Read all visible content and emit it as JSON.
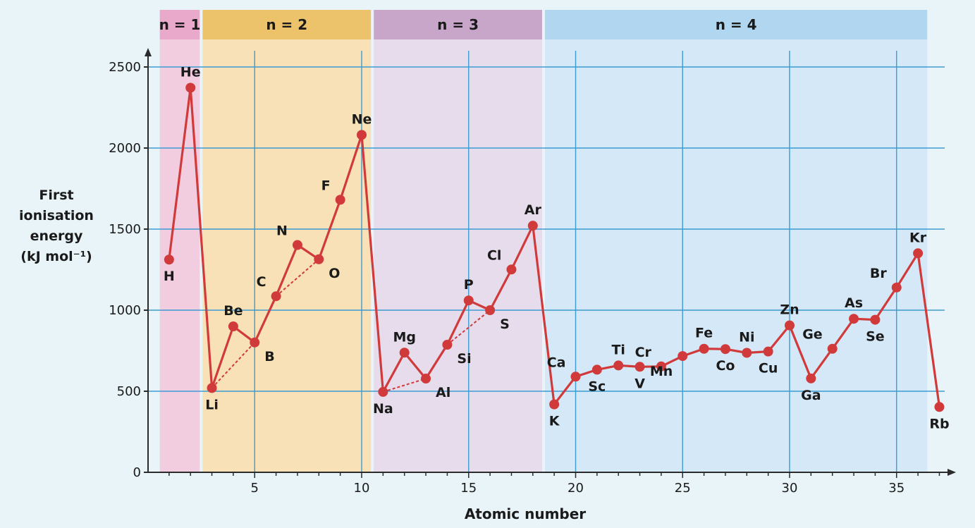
{
  "chart_data": {
    "type": "line",
    "ylabel_lines": [
      "First",
      "ionisation",
      "energy",
      "(kJ mol⁻¹)"
    ],
    "xlabel": "Atomic number",
    "xlim": [
      0,
      38
    ],
    "ylim": [
      0,
      2500
    ],
    "x_ticks": [
      5,
      10,
      15,
      20,
      25,
      30,
      35
    ],
    "y_ticks": [
      0,
      500,
      1000,
      1500,
      2000,
      2500
    ],
    "grid": true,
    "shells": [
      {
        "label": "n = 1",
        "from": 0.5,
        "to": 2.5,
        "band_color": "#f2cde0",
        "header_color": "#e9a9cb"
      },
      {
        "label": "n = 2",
        "from": 2.5,
        "to": 10.5,
        "band_color": "#f8e1b7",
        "header_color": "#ecc36b"
      },
      {
        "label": "n = 3",
        "from": 10.5,
        "to": 18.5,
        "band_color": "#e6dcec",
        "header_color": "#c7a6ca"
      },
      {
        "label": "n = 4",
        "from": 18.5,
        "to": 36.5,
        "band_color": "#d5e8f7",
        "header_color": "#b0d7ef"
      }
    ],
    "series": [
      {
        "color": "#d13a3a",
        "points": [
          {
            "x": 1,
            "y": 1312,
            "label": "H",
            "pos": "below"
          },
          {
            "x": 2,
            "y": 2372,
            "label": "He",
            "pos": "above"
          },
          {
            "x": 3,
            "y": 520,
            "label": "Li",
            "pos": "below"
          },
          {
            "x": 4,
            "y": 900,
            "label": "Be",
            "pos": "above"
          },
          {
            "x": 5,
            "y": 801,
            "label": "B",
            "pos": "below-right"
          },
          {
            "x": 6,
            "y": 1086,
            "label": "C",
            "pos": "above-left"
          },
          {
            "x": 7,
            "y": 1402,
            "label": "N",
            "pos": "above-left"
          },
          {
            "x": 8,
            "y": 1314,
            "label": "O",
            "pos": "below-right"
          },
          {
            "x": 9,
            "y": 1681,
            "label": "F",
            "pos": "above-left"
          },
          {
            "x": 10,
            "y": 2081,
            "label": "Ne",
            "pos": "above"
          },
          {
            "x": 11,
            "y": 496,
            "label": "Na",
            "pos": "below"
          },
          {
            "x": 12,
            "y": 738,
            "label": "Mg",
            "pos": "above"
          },
          {
            "x": 13,
            "y": 578,
            "label": "Al",
            "pos": "below-right"
          },
          {
            "x": 14,
            "y": 787,
            "label": "Si",
            "pos": "below-right"
          },
          {
            "x": 15,
            "y": 1060,
            "label": "P",
            "pos": "above"
          },
          {
            "x": 16,
            "y": 1000,
            "label": "S",
            "pos": "below-right"
          },
          {
            "x": 17,
            "y": 1251,
            "label": "Cl",
            "pos": "above-left"
          },
          {
            "x": 18,
            "y": 1521,
            "label": "Ar",
            "pos": "above"
          },
          {
            "x": 19,
            "y": 419,
            "label": "K",
            "pos": "below"
          },
          {
            "x": 20,
            "y": 590,
            "label": "Ca",
            "pos": "above-left"
          },
          {
            "x": 21,
            "y": 633,
            "label": "Sc",
            "pos": "below"
          },
          {
            "x": 22,
            "y": 659,
            "label": "Ti",
            "pos": "above"
          },
          {
            "x": 23,
            "y": 651,
            "label": "V",
            "pos": "below"
          },
          {
            "x": 24,
            "y": 653,
            "label": "Cr",
            "pos": "above-left"
          },
          {
            "x": 25,
            "y": 717,
            "label": "Mn",
            "pos": "below-left"
          },
          {
            "x": 26,
            "y": 762,
            "label": "Fe",
            "pos": "above"
          },
          {
            "x": 27,
            "y": 760,
            "label": "Co",
            "pos": "below"
          },
          {
            "x": 28,
            "y": 737,
            "label": "Ni",
            "pos": "above"
          },
          {
            "x": 29,
            "y": 745,
            "label": "Cu",
            "pos": "below"
          },
          {
            "x": 30,
            "y": 906,
            "label": "Zn",
            "pos": "above"
          },
          {
            "x": 31,
            "y": 579,
            "label": "Ga",
            "pos": "below"
          },
          {
            "x": 32,
            "y": 762,
            "label": "Ge",
            "pos": "above-left"
          },
          {
            "x": 33,
            "y": 947,
            "label": "As",
            "pos": "above"
          },
          {
            "x": 34,
            "y": 941,
            "label": "Se",
            "pos": "below"
          },
          {
            "x": 35,
            "y": 1140,
            "label": "Br",
            "pos": "above-left"
          },
          {
            "x": 36,
            "y": 1351,
            "label": "Kr",
            "pos": "above"
          },
          {
            "x": 37,
            "y": 403,
            "label": "Rb",
            "pos": "below"
          }
        ]
      }
    ],
    "dashed_links": [
      [
        3,
        5
      ],
      [
        6,
        8
      ],
      [
        11,
        13
      ],
      [
        14,
        16
      ]
    ]
  }
}
